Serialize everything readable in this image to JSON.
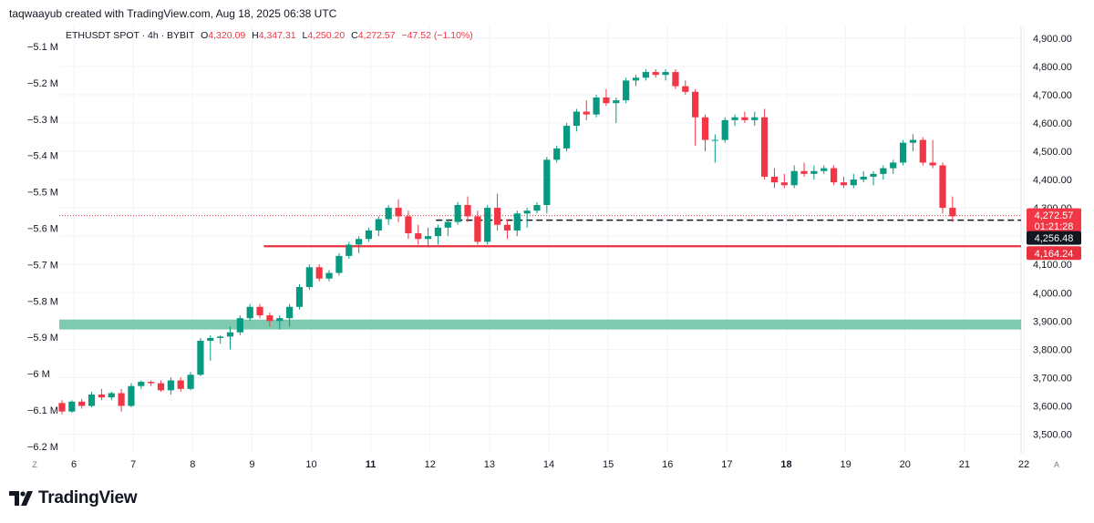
{
  "header": {
    "attribution": "taqwaayub created with TradingView.com, Aug 18, 2025 06:38 UTC"
  },
  "legend": {
    "symbol": "ETHUSDT SPOT · 4h · BYBIT",
    "o_label": "O",
    "o_value": "4,320.09",
    "h_label": "H",
    "h_value": "4,347.31",
    "l_label": "L",
    "l_value": "4,250.20",
    "c_label": "C",
    "c_value": "4,272.57",
    "change": "−47.52 (−1.10%)"
  },
  "footer": {
    "brand": "TradingView"
  },
  "colors": {
    "up": "#089981",
    "down": "#f23645",
    "support_zone": "#7dcab1",
    "support_line": "#e8303f",
    "text": "#131722"
  },
  "chart_data": {
    "type": "candlestick",
    "symbol": "ETHUSDT SPOT",
    "interval": "4h",
    "exchange": "BYBIT",
    "price_axis": {
      "ticks": [
        3500,
        3600,
        3700,
        3800,
        3900,
        4000,
        4100,
        4200,
        4300,
        4400,
        4500,
        4600,
        4700,
        4800,
        4900
      ],
      "tick_labels": [
        "3,500.00",
        "3,600.00",
        "3,700.00",
        "3,800.00",
        "3,900.00",
        "4,000.00",
        "4,100.00",
        "4,200.00",
        "4,300.00",
        "4,400.00",
        "4,500.00",
        "4,600.00",
        "4,700.00",
        "4,800.00",
        "4,900.00"
      ],
      "range": [
        3400,
        4950
      ]
    },
    "left_axis": {
      "tick_labels": [
        "−5.1 M",
        "−5.2 M",
        "−5.3 M",
        "−5.4 M",
        "−5.5 M",
        "−5.6 M",
        "−5.7 M",
        "−5.8 M",
        "−5.9 M",
        "−6 M",
        "−6.1 M",
        "−6.2 M"
      ]
    },
    "time_axis": {
      "labels": [
        "6",
        "7",
        "8",
        "9",
        "10",
        "11",
        "12",
        "13",
        "14",
        "15",
        "16",
        "17",
        "18",
        "19",
        "20",
        "21",
        "22"
      ],
      "bold": [
        "11",
        "18"
      ],
      "first_day": 6,
      "left_button": "Z",
      "right_button": "A"
    },
    "candles": [
      [
        3610,
        3620,
        3570,
        3580
      ],
      [
        3580,
        3620,
        3575,
        3615
      ],
      [
        3615,
        3625,
        3590,
        3600
      ],
      [
        3600,
        3650,
        3595,
        3640
      ],
      [
        3640,
        3660,
        3620,
        3630
      ],
      [
        3630,
        3650,
        3620,
        3645
      ],
      [
        3645,
        3660,
        3580,
        3600
      ],
      [
        3600,
        3680,
        3595,
        3670
      ],
      [
        3670,
        3690,
        3660,
        3685
      ],
      [
        3685,
        3690,
        3670,
        3680
      ],
      [
        3680,
        3690,
        3650,
        3655
      ],
      [
        3655,
        3700,
        3640,
        3690
      ],
      [
        3690,
        3700,
        3650,
        3660
      ],
      [
        3660,
        3720,
        3655,
        3710
      ],
      [
        3710,
        3840,
        3705,
        3830
      ],
      [
        3830,
        3850,
        3760,
        3840
      ],
      [
        3840,
        3850,
        3820,
        3845
      ],
      [
        3845,
        3880,
        3800,
        3860
      ],
      [
        3860,
        3920,
        3850,
        3910
      ],
      [
        3910,
        3960,
        3900,
        3950
      ],
      [
        3950,
        3960,
        3910,
        3920
      ],
      [
        3920,
        3930,
        3880,
        3900
      ],
      [
        3900,
        3920,
        3870,
        3910
      ],
      [
        3910,
        3960,
        3880,
        3950
      ],
      [
        3950,
        4030,
        3940,
        4020
      ],
      [
        4020,
        4100,
        4010,
        4090
      ],
      [
        4090,
        4100,
        4040,
        4050
      ],
      [
        4050,
        4080,
        4040,
        4070
      ],
      [
        4070,
        4140,
        4060,
        4130
      ],
      [
        4130,
        4180,
        4120,
        4170
      ],
      [
        4170,
        4200,
        4140,
        4190
      ],
      [
        4190,
        4230,
        4180,
        4220
      ],
      [
        4220,
        4270,
        4200,
        4260
      ],
      [
        4260,
        4310,
        4240,
        4300
      ],
      [
        4300,
        4330,
        4250,
        4270
      ],
      [
        4270,
        4290,
        4190,
        4210
      ],
      [
        4210,
        4240,
        4170,
        4190
      ],
      [
        4190,
        4230,
        4160,
        4200
      ],
      [
        4200,
        4240,
        4170,
        4230
      ],
      [
        4230,
        4260,
        4200,
        4250
      ],
      [
        4250,
        4320,
        4240,
        4310
      ],
      [
        4310,
        4340,
        4250,
        4270
      ],
      [
        4270,
        4290,
        4170,
        4180
      ],
      [
        4180,
        4310,
        4170,
        4300
      ],
      [
        4300,
        4350,
        4220,
        4240
      ],
      [
        4240,
        4260,
        4190,
        4220
      ],
      [
        4220,
        4290,
        4200,
        4280
      ],
      [
        4280,
        4300,
        4230,
        4290
      ],
      [
        4290,
        4320,
        4280,
        4310
      ],
      [
        4310,
        4480,
        4280,
        4470
      ],
      [
        4470,
        4520,
        4460,
        4510
      ],
      [
        4510,
        4600,
        4500,
        4590
      ],
      [
        4590,
        4650,
        4570,
        4640
      ],
      [
        4640,
        4680,
        4610,
        4630
      ],
      [
        4630,
        4700,
        4620,
        4690
      ],
      [
        4690,
        4720,
        4660,
        4670
      ],
      [
        4670,
        4690,
        4600,
        4680
      ],
      [
        4680,
        4760,
        4670,
        4750
      ],
      [
        4750,
        4770,
        4730,
        4760
      ],
      [
        4760,
        4790,
        4750,
        4780
      ],
      [
        4780,
        4790,
        4760,
        4770
      ],
      [
        4770,
        4790,
        4750,
        4780
      ],
      [
        4780,
        4790,
        4720,
        4730
      ],
      [
        4730,
        4750,
        4700,
        4710
      ],
      [
        4710,
        4720,
        4520,
        4620
      ],
      [
        4620,
        4630,
        4500,
        4540
      ],
      [
        4540,
        4560,
        4460,
        4540
      ],
      [
        4540,
        4620,
        4530,
        4610
      ],
      [
        4610,
        4630,
        4590,
        4620
      ],
      [
        4620,
        4640,
        4600,
        4610
      ],
      [
        4610,
        4640,
        4590,
        4620
      ],
      [
        4620,
        4650,
        4400,
        4410
      ],
      [
        4410,
        4440,
        4370,
        4390
      ],
      [
        4390,
        4420,
        4370,
        4380
      ],
      [
        4380,
        4450,
        4370,
        4430
      ],
      [
        4430,
        4460,
        4410,
        4420
      ],
      [
        4420,
        4450,
        4400,
        4430
      ],
      [
        4430,
        4450,
        4420,
        4440
      ],
      [
        4440,
        4450,
        4380,
        4390
      ],
      [
        4390,
        4410,
        4370,
        4380
      ],
      [
        4380,
        4420,
        4370,
        4400
      ],
      [
        4400,
        4430,
        4390,
        4410
      ],
      [
        4410,
        4430,
        4380,
        4420
      ],
      [
        4420,
        4450,
        4400,
        4440
      ],
      [
        4440,
        4470,
        4420,
        4460
      ],
      [
        4460,
        4540,
        4450,
        4530
      ],
      [
        4530,
        4560,
        4500,
        4540
      ],
      [
        4540,
        4550,
        4450,
        4460
      ],
      [
        4460,
        4540,
        4440,
        4450
      ],
      [
        4450,
        4460,
        4280,
        4300
      ],
      [
        4300,
        4340,
        4250,
        4270
      ]
    ],
    "candles_per_day": 6,
    "first_candle_day_offset": -0.2,
    "price_line": {
      "value": 4272.57,
      "label": "4,272.57",
      "countdown": "01:21:28"
    },
    "dashed_level": {
      "value": 4256.48,
      "label": "4,256.48",
      "from_day": 12.1
    },
    "support_line": {
      "value": 4164.24,
      "label": "4,164.24",
      "from_day": 9.2
    },
    "support_zone": {
      "low": 3870,
      "high": 3905
    }
  }
}
